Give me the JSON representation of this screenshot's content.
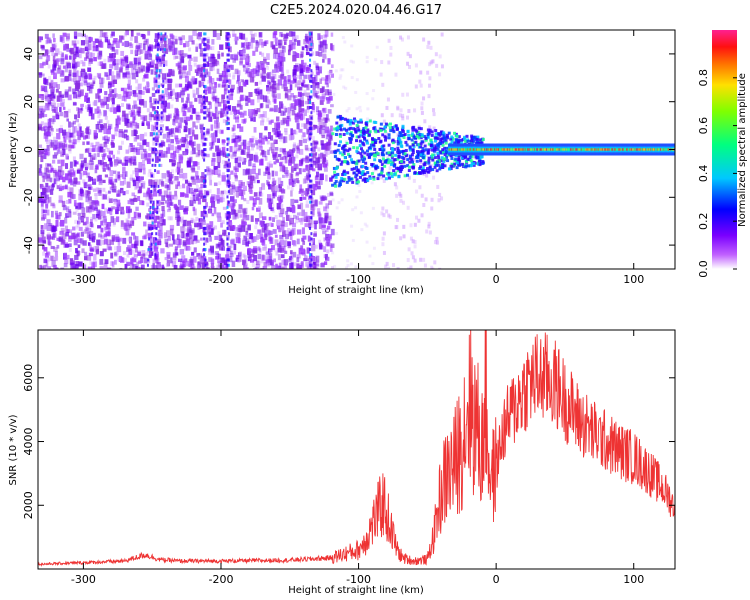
{
  "title": "C2E5.2024.020.04.46.G17",
  "chart_data": [
    {
      "type": "heatmap",
      "xlabel": "Height of straight line (km)",
      "ylabel": "Frequency (Hz)",
      "xlim": [
        -333,
        130
      ],
      "ylim": [
        -50,
        50
      ],
      "xticks": [
        -300,
        -200,
        -100,
        0,
        100
      ],
      "yticks": [
        -40,
        -20,
        0,
        20,
        40
      ],
      "colorbar": {
        "label": "Normalized spectral amplitude",
        "range": [
          0,
          1
        ],
        "ticks": [
          0.0,
          0.2,
          0.4,
          0.6,
          0.8
        ]
      }
    },
    {
      "type": "line",
      "xlabel": "Height of straight line (km)",
      "ylabel": "SNR (10 * v/v)",
      "xlim": [
        -333,
        130
      ],
      "ylim": [
        0,
        7500
      ],
      "xticks": [
        -300,
        -200,
        -100,
        0,
        100
      ],
      "yticks": [
        2000,
        4000,
        6000
      ],
      "color": "#ee3333",
      "series": [
        {
          "x": [
            -333,
            -300,
            -270,
            -255,
            -245,
            -230,
            -200,
            -150,
            -120,
            -100,
            -95,
            -88,
            -82,
            -78,
            -72,
            -68,
            -60,
            -50,
            -45,
            -42,
            -38,
            -35,
            -30,
            -25,
            -20,
            -15,
            -10,
            -8,
            -5,
            -2,
            0,
            5,
            10,
            15,
            20,
            25,
            30,
            35,
            40,
            45,
            50,
            55,
            60,
            70,
            80,
            90,
            100,
            110,
            120,
            125,
            130
          ],
          "y": [
            150,
            200,
            250,
            450,
            300,
            250,
            250,
            280,
            350,
            600,
            900,
            1600,
            2100,
            1500,
            600,
            350,
            250,
            300,
            1100,
            2000,
            2700,
            3000,
            3300,
            4000,
            5400,
            4600,
            3700,
            5900,
            3200,
            2900,
            3200,
            4300,
            4800,
            5200,
            5600,
            5900,
            6000,
            6000,
            5900,
            5700,
            5300,
            5000,
            4700,
            4300,
            4000,
            3700,
            3500,
            3100,
            2600,
            2300,
            1900
          ]
        }
      ]
    }
  ]
}
